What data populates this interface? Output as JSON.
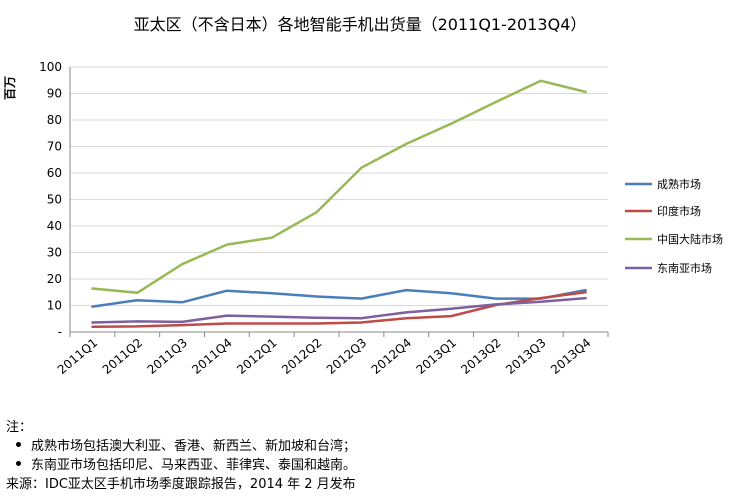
{
  "chart_data": {
    "type": "line",
    "title": "亚太区（不含日本）各地智能手机出货量（2011Q1-2013Q4）",
    "ylabel": "百万",
    "xlabel": "",
    "ylim": [
      0,
      100
    ],
    "yticks": [
      0,
      10,
      20,
      30,
      40,
      50,
      60,
      70,
      80,
      90,
      100
    ],
    "yticklabels": [
      "-",
      "10",
      "20",
      "30",
      "40",
      "50",
      "60",
      "70",
      "80",
      "90",
      "100"
    ],
    "grid": true,
    "legend_position": "right",
    "categories": [
      "2011Q1",
      "2011Q2",
      "2011Q3",
      "2011Q4",
      "2012Q1",
      "2012Q2",
      "2012Q3",
      "2012Q4",
      "2013Q1",
      "2013Q2",
      "2013Q3",
      "2013Q4"
    ],
    "series": [
      {
        "name": "成熟市场",
        "color": "#4a7ebb",
        "values": [
          9.6,
          12.0,
          11.2,
          15.6,
          14.6,
          13.4,
          12.6,
          15.8,
          14.6,
          12.6,
          12.6,
          15.8
        ]
      },
      {
        "name": "印度市场",
        "color": "#be4b48",
        "values": [
          2.0,
          2.1,
          2.6,
          3.2,
          3.2,
          3.2,
          3.6,
          5.2,
          6.0,
          10.2,
          12.8,
          15.0
        ]
      },
      {
        "name": "中国大陆市场",
        "color": "#98b954",
        "values": [
          16.4,
          14.8,
          25.6,
          33.0,
          35.6,
          45.2,
          62.0,
          71.0,
          78.6,
          86.8,
          94.8,
          90.6
        ]
      },
      {
        "name": "东南亚市场",
        "color": "#7d60a0",
        "values": [
          3.6,
          4.0,
          3.8,
          6.2,
          5.8,
          5.4,
          5.2,
          7.4,
          8.8,
          10.4,
          11.4,
          12.8
        ]
      }
    ]
  },
  "notes": {
    "label": "注：",
    "bullets": [
      "成熟市场包括澳大利亚、香港、新西兰、新加坡和台湾；",
      "东南亚市场包括印尼、马来西亚、菲律宾、泰国和越南。"
    ],
    "source": "来源：IDC亚太区手机市场季度跟踪报告，2014 年 2 月发布"
  },
  "colors": {
    "gridline": "#d9d9d9",
    "axis": "#888888"
  }
}
